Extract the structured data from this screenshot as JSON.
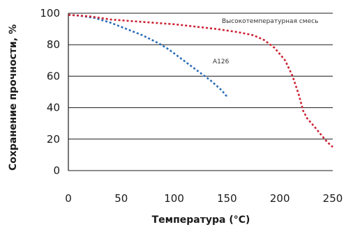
{
  "chart_data": {
    "type": "line",
    "xlabel": "Температура (°С)",
    "ylabel": "Сохранение прочности, %",
    "xlim": [
      0,
      250
    ],
    "ylim": [
      0,
      100
    ],
    "xticks": [
      0,
      50,
      100,
      150,
      200,
      250
    ],
    "yticks": [
      0,
      20,
      40,
      60,
      80,
      100
    ],
    "grid": "horizontal",
    "series": [
      {
        "name": "A126",
        "color": "#2a6db5",
        "x": [
          0,
          10,
          25,
          40,
          55,
          70,
          85,
          95,
          105,
          115,
          125,
          135,
          145,
          150
        ],
        "y": [
          99,
          98.5,
          97,
          94,
          90,
          86,
          81,
          77,
          72,
          67,
          62,
          57,
          51,
          47
        ]
      },
      {
        "name": "Высокотемпературная смесь",
        "color": "#cc2233",
        "x": [
          0,
          20,
          40,
          60,
          80,
          100,
          120,
          140,
          160,
          175,
          185,
          195,
          205,
          212,
          218,
          222,
          226,
          230,
          235,
          240,
          245,
          250
        ],
        "y": [
          99,
          98,
          96,
          95,
          94,
          93,
          91.5,
          90,
          88,
          86,
          83,
          78,
          70,
          60,
          48,
          38,
          33,
          30,
          26,
          22,
          18,
          15
        ]
      }
    ]
  }
}
